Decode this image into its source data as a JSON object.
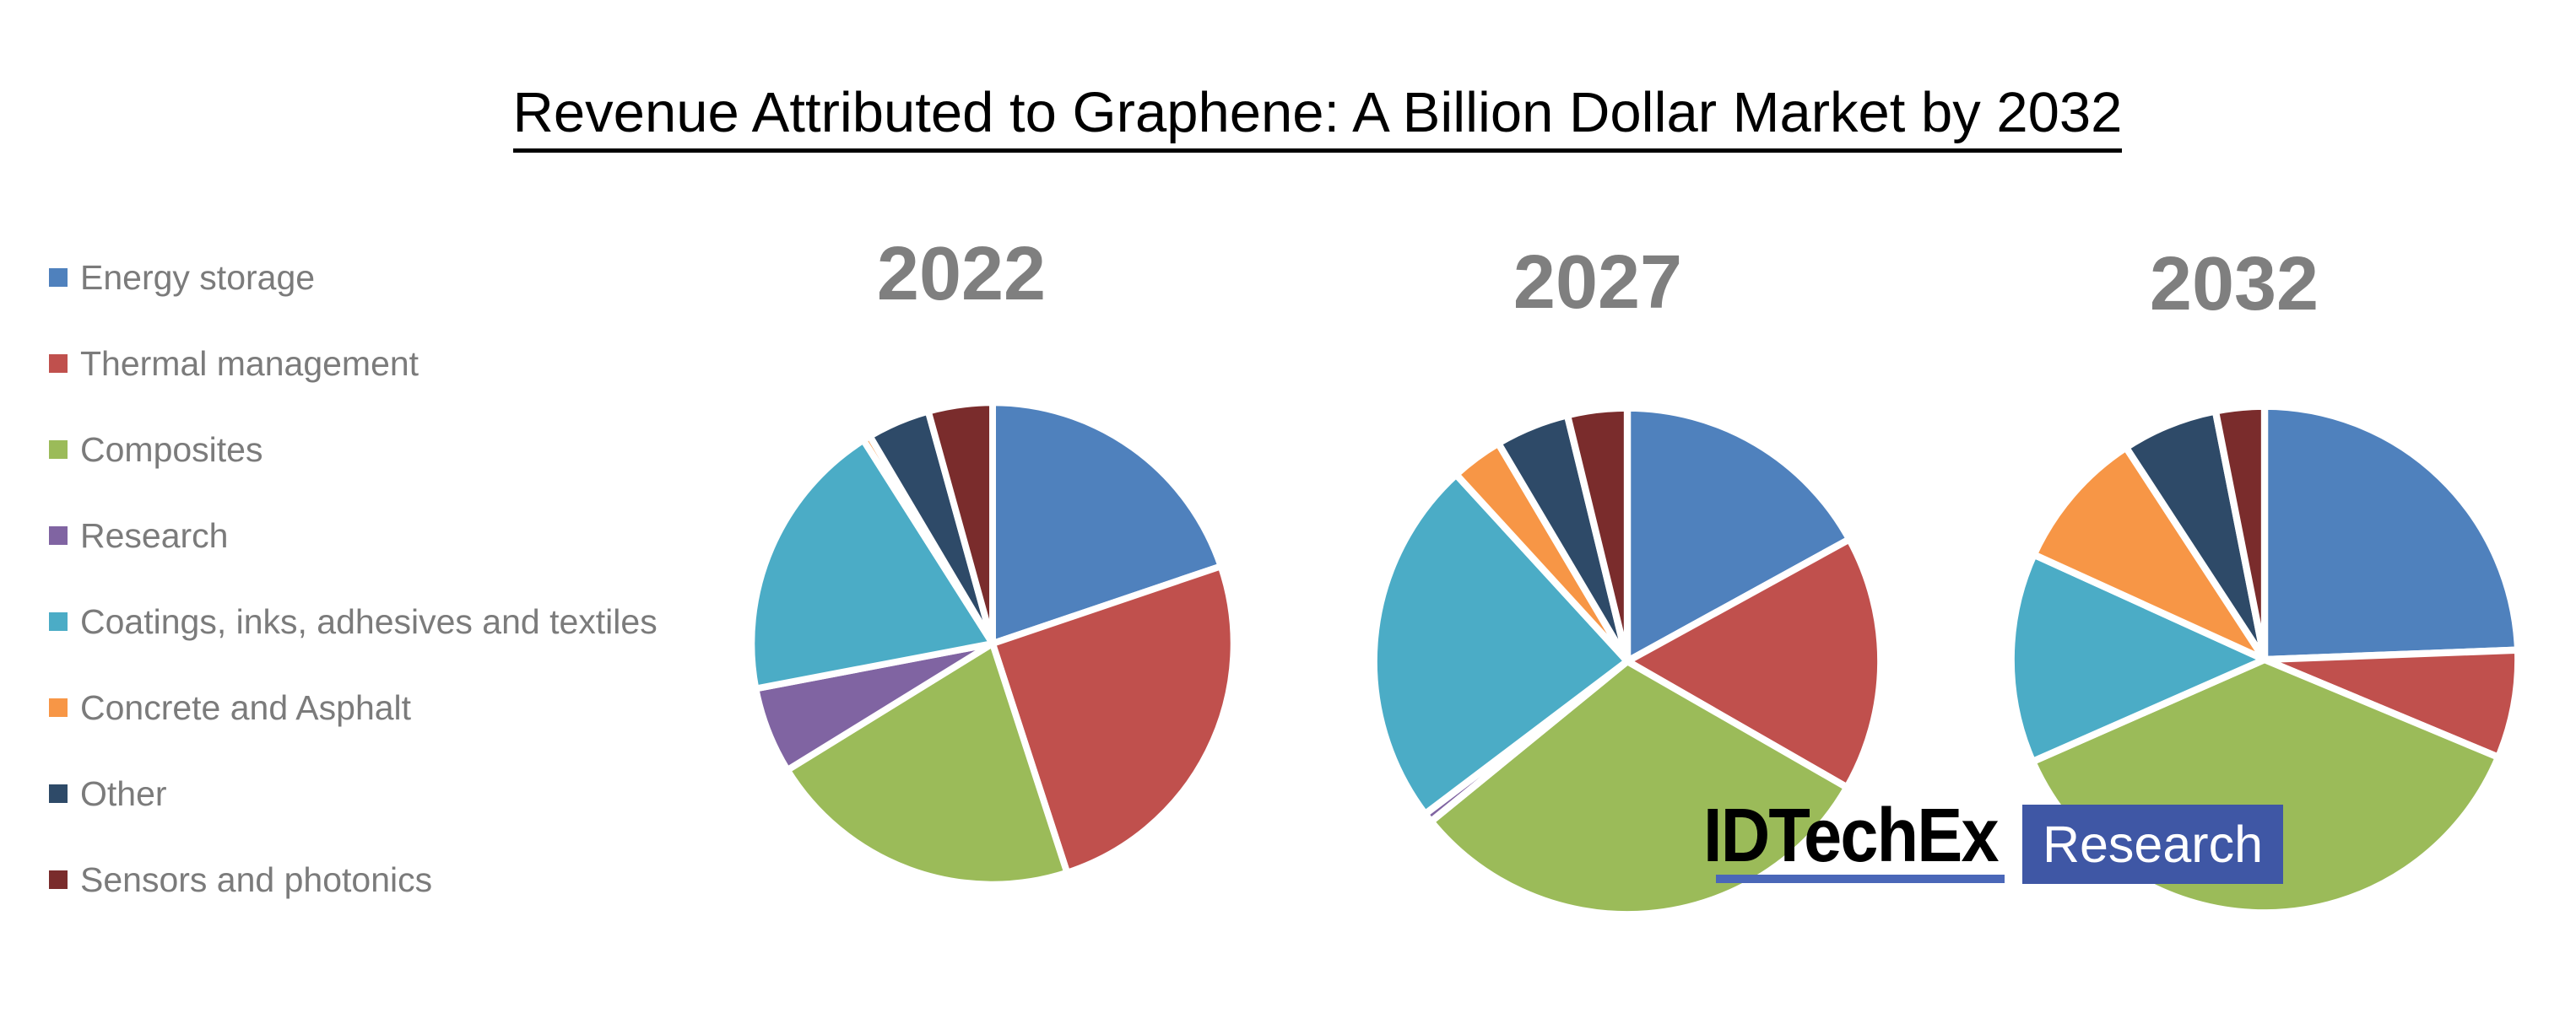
{
  "title": "Revenue Attributed to Graphene: A Billion Dollar Market by 2032",
  "chart_data": {
    "type": "pie",
    "title": "Revenue Attributed to Graphene: A Billion Dollar Market by 2032",
    "legend_position": "left",
    "categories": [
      "Energy storage",
      "Thermal management",
      "Composites",
      "Research",
      "Coatings, inks, adhesives and textiles",
      "Concrete and Asphalt",
      "Other",
      "Sensors and photonics"
    ],
    "colors": [
      "#4F81BD",
      "#C0504D",
      "#9BBB59",
      "#8064A2",
      "#4BACC6",
      "#F79646",
      "#2E4A68",
      "#7A2C2C"
    ],
    "series": [
      {
        "name": "2022",
        "values": [
          19.8,
          25.2,
          21.2,
          5.8,
          19.0,
          0.5,
          4.2,
          4.3
        ]
      },
      {
        "name": "2027",
        "values": [
          17.0,
          16.3,
          30.8,
          0.6,
          23.5,
          3.3,
          4.7,
          3.8
        ]
      },
      {
        "name": "2032",
        "values": [
          24.4,
          6.9,
          37.1,
          0.0,
          13.4,
          9.0,
          6.1,
          3.1
        ]
      }
    ],
    "value_unit": "percent"
  },
  "logo": {
    "brand": "IDTechEx",
    "suffix": "Research",
    "box_color": "#3F57A5",
    "underline_color": "#4A67B8"
  },
  "styles": {
    "year_label_color": "#7f7f7f",
    "legend_text_color": "#7b7b7b",
    "title_color": "#000000"
  }
}
